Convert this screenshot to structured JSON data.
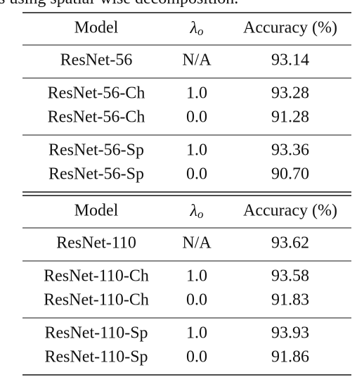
{
  "caption": "s using spatial-wise decomposition.",
  "tables": [
    {
      "header": [
        "Model",
        {
          "symbol": "λ",
          "subscript": "o"
        },
        "Accuracy (%)"
      ],
      "groups": [
        [
          [
            "ResNet-56",
            "N/A",
            "93.14"
          ]
        ],
        [
          [
            "ResNet-56-Ch",
            "1.0",
            "93.28"
          ],
          [
            "ResNet-56-Ch",
            "0.0",
            "91.28"
          ]
        ],
        [
          [
            "ResNet-56-Sp",
            "1.0",
            "93.36"
          ],
          [
            "ResNet-56-Sp",
            "0.0",
            "90.70"
          ]
        ]
      ]
    },
    {
      "header": [
        "Model",
        {
          "symbol": "λ",
          "subscript": "o"
        },
        "Accuracy (%)"
      ],
      "groups": [
        [
          [
            "ResNet-110",
            "N/A",
            "93.62"
          ]
        ],
        [
          [
            "ResNet-110-Ch",
            "1.0",
            "93.58"
          ],
          [
            "ResNet-110-Ch",
            "0.0",
            "91.83"
          ]
        ],
        [
          [
            "ResNet-110-Sp",
            "1.0",
            "93.93"
          ],
          [
            "ResNet-110-Sp",
            "0.0",
            "91.86"
          ]
        ]
      ]
    }
  ]
}
